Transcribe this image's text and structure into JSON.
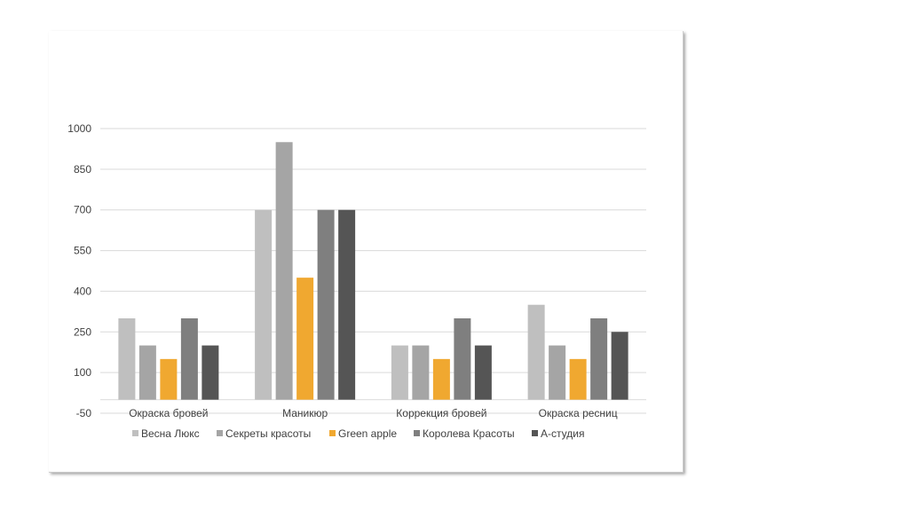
{
  "chart_data": {
    "type": "bar",
    "title": "",
    "xlabel": "",
    "ylabel": "",
    "ylim": [
      -50,
      1000
    ],
    "yticks": [
      -50,
      100,
      250,
      400,
      550,
      700,
      850,
      1000
    ],
    "grid": true,
    "legend_position": "bottom",
    "categories": [
      "Окраска бровей",
      "Маникюр",
      "Коррекция бровей",
      "Окраска ресниц"
    ],
    "series": [
      {
        "name": "Весна Люкс",
        "color": "#bfbfbf",
        "values": [
          300,
          700,
          200,
          350
        ]
      },
      {
        "name": "Секреты красоты",
        "color": "#a5a5a5",
        "values": [
          200,
          950,
          200,
          200
        ]
      },
      {
        "name": "Green apple",
        "color": "#f0a830",
        "values": [
          150,
          450,
          150,
          150
        ]
      },
      {
        "name": "Королева Красоты",
        "color": "#7f7f7f",
        "values": [
          300,
          700,
          300,
          300
        ]
      },
      {
        "name": "А-студия",
        "color": "#555555",
        "values": [
          200,
          700,
          200,
          250
        ]
      }
    ]
  }
}
